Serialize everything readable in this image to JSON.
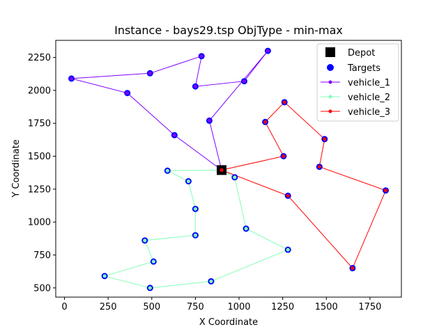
{
  "chart_data": {
    "type": "scatter",
    "title": "Instance - bays29.tsp   ObjType - min-max",
    "xlabel": "X Coordinate",
    "ylabel": "Y Coordinate",
    "xlim": [
      -50,
      1930
    ],
    "ylim": [
      430,
      2380
    ],
    "xticks": [
      0,
      250,
      500,
      750,
      1000,
      1250,
      1500,
      1750
    ],
    "yticks": [
      500,
      750,
      1000,
      1250,
      1500,
      1750,
      2000,
      2250
    ],
    "xtick_labels": [
      "0",
      "250",
      "500",
      "750",
      "1000",
      "1250",
      "1500",
      "1750"
    ],
    "ytick_labels": [
      "500",
      "750",
      "1000",
      "1250",
      "1500",
      "1750",
      "2000",
      "2250"
    ],
    "grid": false,
    "legend_position": "top-right",
    "depot": {
      "name": "Depot",
      "color": "#000000",
      "x": 900,
      "y": 1395
    },
    "targets": {
      "name": "Targets",
      "color": "#0000ff",
      "points": [
        [
          40,
          2090
        ],
        [
          490,
          2130
        ],
        [
          785,
          2260
        ],
        [
          1165,
          2300
        ],
        [
          750,
          2030
        ],
        [
          1030,
          2070
        ],
        [
          360,
          1980
        ],
        [
          830,
          1770
        ],
        [
          630,
          1660
        ],
        [
          1260,
          1910
        ],
        [
          1150,
          1760
        ],
        [
          1490,
          1630
        ],
        [
          1255,
          1500
        ],
        [
          1460,
          1420
        ],
        [
          1840,
          1240
        ],
        [
          1280,
          1200
        ],
        [
          1650,
          650
        ],
        [
          590,
          1390
        ],
        [
          710,
          1310
        ],
        [
          750,
          1100
        ],
        [
          750,
          900
        ],
        [
          460,
          860
        ],
        [
          510,
          700
        ],
        [
          230,
          590
        ],
        [
          490,
          500
        ],
        [
          840,
          550
        ],
        [
          1280,
          790
        ],
        [
          1040,
          950
        ],
        [
          975,
          1340
        ]
      ]
    },
    "series": [
      {
        "name": "vehicle_1",
        "color": "#8000ff",
        "x": [
          900,
          630,
          360,
          40,
          490,
          785,
          750,
          1030,
          1165,
          830,
          900
        ],
        "y": [
          1395,
          1660,
          1980,
          2090,
          2130,
          2260,
          2030,
          2070,
          2300,
          1770,
          1395
        ]
      },
      {
        "name": "vehicle_2",
        "color": "#80ffb4",
        "x": [
          900,
          590,
          710,
          750,
          750,
          460,
          510,
          230,
          490,
          840,
          1280,
          1040,
          975,
          900
        ],
        "y": [
          1395,
          1390,
          1310,
          1100,
          900,
          860,
          700,
          590,
          500,
          550,
          790,
          950,
          1340,
          1395
        ]
      },
      {
        "name": "vehicle_3",
        "color": "#ff0000",
        "x": [
          900,
          1255,
          1150,
          1260,
          1490,
          1460,
          1840,
          1650,
          1280,
          900
        ],
        "y": [
          1395,
          1500,
          1760,
          1910,
          1630,
          1420,
          1240,
          650,
          1200,
          1395
        ]
      }
    ]
  }
}
